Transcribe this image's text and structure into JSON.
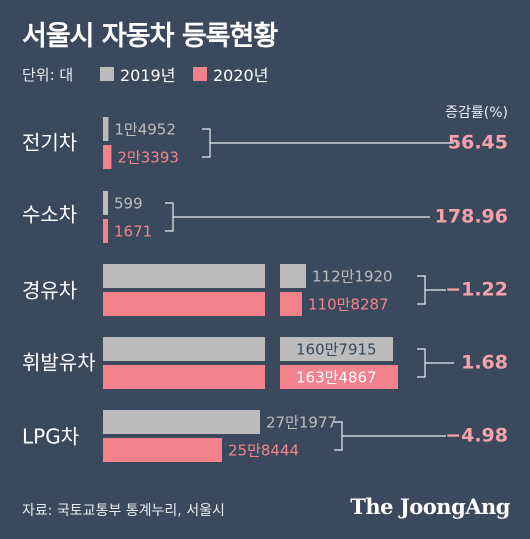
{
  "header": {
    "title": "서울시 자동차 등록현황",
    "unit_label": "단위: 대",
    "rate_header": "증감률(%)"
  },
  "footer": {
    "source": "자료: 국토교통부 통계누리, 서울시",
    "brand": "The JoongAng"
  },
  "colors": {
    "background": "#3a4a5c",
    "series_2019": "#bcbcbc",
    "series_2020": "#f4828d",
    "rate_text": "#f6a2aa"
  },
  "chart_data": {
    "type": "bar",
    "orientation": "horizontal",
    "title": "서울시 자동차 등록현황",
    "unit": "대",
    "categories": [
      "전기차",
      "수소차",
      "경유차",
      "휘발유차",
      "LPG차"
    ],
    "series": [
      {
        "name": "2019년",
        "values": [
          14952,
          599,
          1121920,
          1607915,
          271977
        ],
        "labels": [
          "1만4952",
          "599",
          "112만1920",
          "160만7915",
          "27만1977"
        ]
      },
      {
        "name": "2020년",
        "values": [
          23393,
          1671,
          1108287,
          1634867,
          258444
        ],
        "labels": [
          "2만3393",
          "1671",
          "110만8287",
          "163만4867",
          "25만8444"
        ]
      }
    ],
    "change_rate_header": "증감률(%)",
    "change_rates": [
      "56.45",
      "178.96",
      "-1.22",
      "1.68",
      "-4.98"
    ],
    "axis_broken": true,
    "grid": false,
    "legend_position": "top-left"
  }
}
